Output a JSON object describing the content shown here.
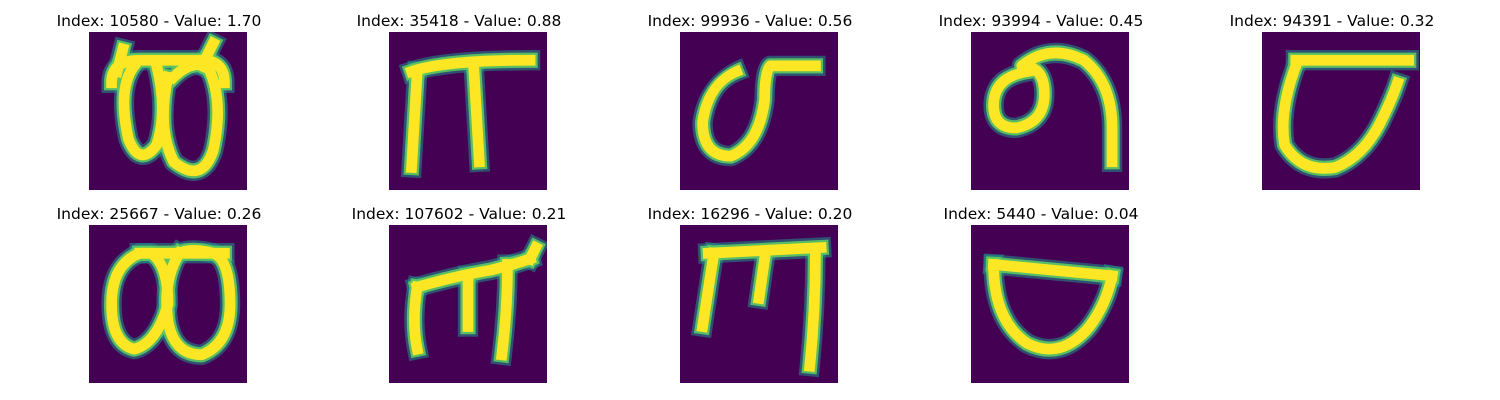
{
  "palette": {
    "background": "#440154",
    "low": "#3b528b",
    "mid": "#21918c",
    "high": "#5ec962",
    "peak": "#fde725"
  },
  "panels": [
    {
      "index": "10580",
      "value": "1.70",
      "title": "Index: 10580 - Value: 1.70",
      "glyph": "double-loop-with-horns"
    },
    {
      "index": "35418",
      "value": "0.88",
      "title": "Index: 35418 - Value: 0.88",
      "glyph": "pi-shape"
    },
    {
      "index": "99936",
      "value": "0.56",
      "title": "Index: 99936 - Value: 0.56",
      "glyph": "loop-with-top-bar"
    },
    {
      "index": "93994",
      "value": "0.45",
      "title": "Index: 93994 - Value: 0.45",
      "glyph": "loop-with-hook"
    },
    {
      "index": "94391",
      "value": "0.32",
      "title": "Index: 94391 - Value: 0.32",
      "glyph": "cup-with-top-bar"
    },
    {
      "index": "25667",
      "value": "0.26",
      "title": "Index: 25667 - Value: 0.26",
      "glyph": "double-loop"
    },
    {
      "index": "107602",
      "value": "0.21",
      "title": "Index: 107602 - Value: 0.21",
      "glyph": "three-leg-bar"
    },
    {
      "index": "16296",
      "value": "0.20",
      "title": "Index: 16296 - Value: 0.20",
      "glyph": "m-bar"
    },
    {
      "index": "5440",
      "value": "0.04",
      "title": "Index: 5440 - Value: 0.04",
      "glyph": "bowl-with-lid"
    }
  ]
}
